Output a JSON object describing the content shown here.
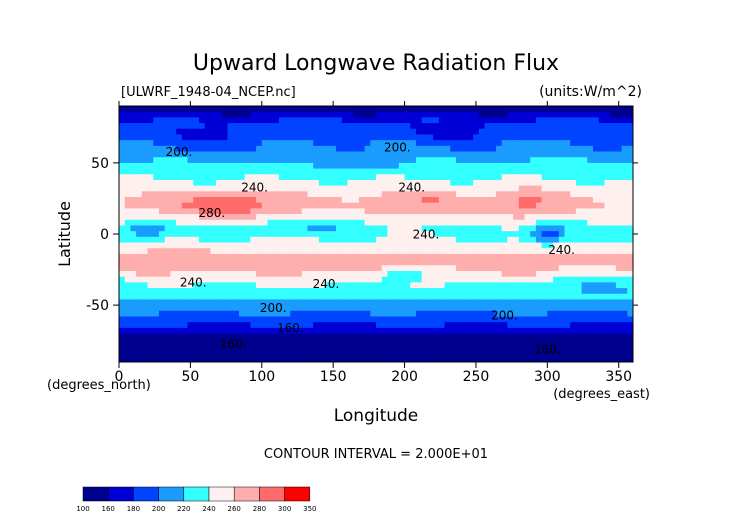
{
  "header": {
    "title": "Upward Longwave Radiation Flux",
    "file_label": "[ULWRF_1948-04_NCEP.nc]",
    "units_label": "(units:W/m^2)"
  },
  "chart_data": {
    "type": "heatmap",
    "title": "Upward Longwave Radiation Flux",
    "xlabel": "Longitude",
    "ylabel": "Latitude",
    "x_unit": "(degrees_east)",
    "y_unit": "(degrees_north)",
    "xlim": [
      0,
      360
    ],
    "ylim": [
      -90,
      90
    ],
    "xticks": [
      0,
      50,
      100,
      150,
      200,
      250,
      300,
      350
    ],
    "yticks": [
      -50,
      0,
      50
    ],
    "contour_interval_text": "CONTOUR INTERVAL = 2.000E+01",
    "contour_labels": [
      {
        "text": "200.",
        "lon": 42,
        "lat": 55
      },
      {
        "text": "200.",
        "lon": 195,
        "lat": 58
      },
      {
        "text": "240.",
        "lon": 95,
        "lat": 30
      },
      {
        "text": "240.",
        "lon": 205,
        "lat": 30
      },
      {
        "text": "280.",
        "lon": 65,
        "lat": 12
      },
      {
        "text": "240.",
        "lon": 215,
        "lat": -3
      },
      {
        "text": "240.",
        "lon": 310,
        "lat": -14
      },
      {
        "text": "240.",
        "lon": 52,
        "lat": -37
      },
      {
        "text": "240.",
        "lon": 145,
        "lat": -38
      },
      {
        "text": "200.",
        "lon": 108,
        "lat": -55
      },
      {
        "text": "200.",
        "lon": 270,
        "lat": -60
      },
      {
        "text": "160.",
        "lon": 120,
        "lat": -69
      },
      {
        "text": "160.",
        "lon": 80,
        "lat": -80
      },
      {
        "text": "160.",
        "lon": 300,
        "lat": -84
      }
    ],
    "colorbar": {
      "levels": [
        "100",
        "160",
        "180",
        "200",
        "220",
        "240",
        "260",
        "280",
        "300",
        "350"
      ],
      "colors": [
        "#00008f",
        "#0000d6",
        "#0044ff",
        "#1a9cff",
        "#33ffff",
        "#fff0f0",
        "#ffaeae",
        "#ff6a6a",
        "#ff0000"
      ]
    },
    "zonal_profile": [
      {
        "lat": 90,
        "value": 150
      },
      {
        "lat": 85,
        "value": 160
      },
      {
        "lat": 80,
        "value": 180
      },
      {
        "lat": 75,
        "value": 185
      },
      {
        "lat": 70,
        "value": 190
      },
      {
        "lat": 65,
        "value": 200
      },
      {
        "lat": 60,
        "value": 205
      },
      {
        "lat": 55,
        "value": 215
      },
      {
        "lat": 50,
        "value": 222
      },
      {
        "lat": 45,
        "value": 228
      },
      {
        "lat": 40,
        "value": 238
      },
      {
        "lat": 35,
        "value": 245
      },
      {
        "lat": 30,
        "value": 252
      },
      {
        "lat": 25,
        "value": 262
      },
      {
        "lat": 20,
        "value": 262
      },
      {
        "lat": 15,
        "value": 258
      },
      {
        "lat": 10,
        "value": 248
      },
      {
        "lat": 5,
        "value": 238
      },
      {
        "lat": 0,
        "value": 238
      },
      {
        "lat": -5,
        "value": 243
      },
      {
        "lat": -10,
        "value": 252
      },
      {
        "lat": -15,
        "value": 262
      },
      {
        "lat": -20,
        "value": 265
      },
      {
        "lat": -25,
        "value": 262
      },
      {
        "lat": -30,
        "value": 252
      },
      {
        "lat": -35,
        "value": 242
      },
      {
        "lat": -40,
        "value": 232
      },
      {
        "lat": -45,
        "value": 225
      },
      {
        "lat": -50,
        "value": 212
      },
      {
        "lat": -55,
        "value": 200
      },
      {
        "lat": -60,
        "value": 190
      },
      {
        "lat": -65,
        "value": 178
      },
      {
        "lat": -70,
        "value": 162
      },
      {
        "lat": -75,
        "value": 150
      },
      {
        "lat": -80,
        "value": 140
      },
      {
        "lat": -85,
        "value": 140
      },
      {
        "lat": -90,
        "value": 145
      }
    ],
    "anomalies": [
      {
        "lon": 75,
        "lat": 20,
        "rlon": 30,
        "rlat": 8,
        "amp": 40
      },
      {
        "lon": 220,
        "lat": 22,
        "rlon": 40,
        "rlat": 8,
        "amp": 15
      },
      {
        "lon": 285,
        "lat": 22,
        "rlon": 20,
        "rlat": 10,
        "amp": 20
      },
      {
        "lon": 20,
        "lat": 3,
        "rlon": 14,
        "rlat": 8,
        "amp": -40
      },
      {
        "lon": 130,
        "lat": 5,
        "rlon": 40,
        "rlat": 6,
        "amp": -18
      },
      {
        "lon": 300,
        "lat": 0,
        "rlon": 14,
        "rlat": 7,
        "amp": -50
      },
      {
        "lon": 40,
        "lat": -18,
        "rlon": 30,
        "rlat": 8,
        "amp": 15
      },
      {
        "lon": 150,
        "lat": -22,
        "rlon": 30,
        "rlat": 8,
        "amp": 10
      },
      {
        "lon": 270,
        "lat": -20,
        "rlon": 30,
        "rlat": 8,
        "amp": 12
      },
      {
        "lon": 200,
        "lat": -28,
        "rlon": 20,
        "rlat": 6,
        "amp": -30
      },
      {
        "lon": 330,
        "lat": -35,
        "rlon": 40,
        "rlat": 8,
        "amp": -20
      },
      {
        "lon": 60,
        "lat": 65,
        "rlon": 40,
        "rlat": 10,
        "amp": -15
      },
      {
        "lon": 230,
        "lat": 70,
        "rlon": 30,
        "rlat": 8,
        "amp": -15
      },
      {
        "lon": 160,
        "lat": 50,
        "rlon": 40,
        "rlat": 6,
        "amp": -10
      }
    ]
  }
}
